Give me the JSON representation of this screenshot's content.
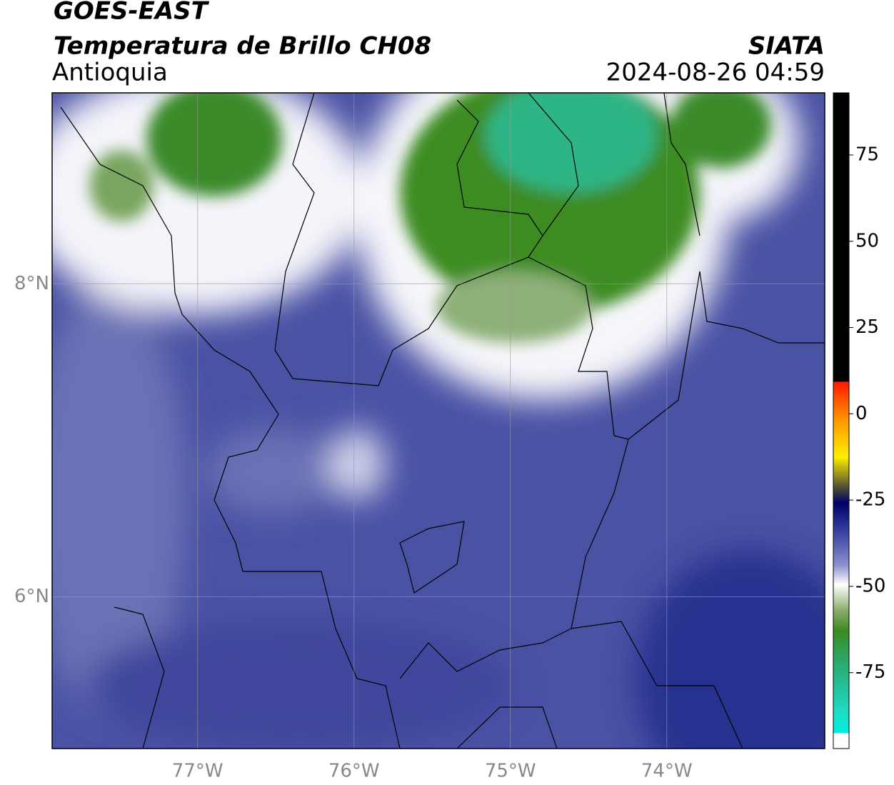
{
  "header": {
    "satellite": "GOES-EAST",
    "product": "Temperatura de Brillo CH08",
    "region": "Antioquia",
    "agency": "SIATA",
    "timestamp": "2024-08-26 04:59"
  },
  "map": {
    "lonlim": [
      -77.93,
      -72.99
    ],
    "latlim": [
      5.03,
      9.22
    ],
    "lonticks": [
      {
        "value": -77,
        "label": "77°W"
      },
      {
        "value": -76,
        "label": "76°W"
      },
      {
        "value": -75,
        "label": "75°W"
      },
      {
        "value": -74,
        "label": "74°W"
      }
    ],
    "latticks": [
      {
        "value": 8,
        "label": "8°N"
      },
      {
        "value": 6,
        "label": "6°N"
      }
    ]
  },
  "colorbar": {
    "lim": [
      -97,
      93
    ],
    "ticks": [
      75,
      50,
      25,
      0,
      -25,
      -50,
      -75
    ]
  }
}
